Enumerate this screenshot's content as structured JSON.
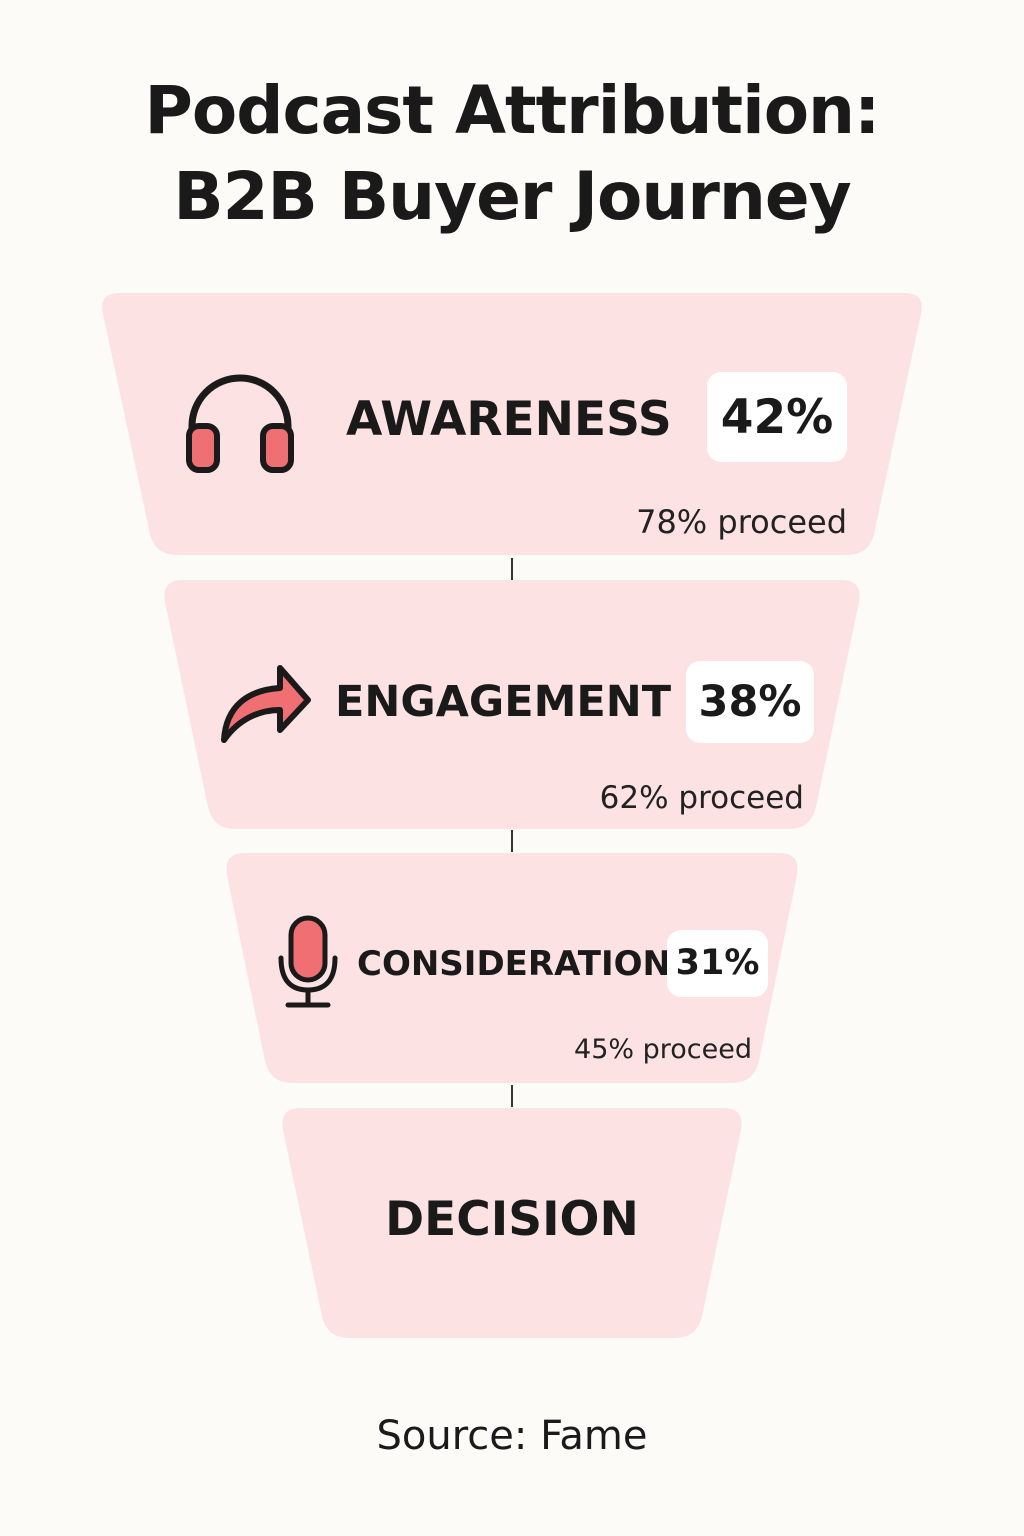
{
  "title": {
    "line1": "Podcast Attribution:",
    "line2": "B2B Buyer Journey"
  },
  "colors": {
    "background": "#fcfbf7",
    "stage_fill": "#fde2e4",
    "accent": "#ef6f73",
    "text": "#1a1a1a"
  },
  "stages": [
    {
      "label": "AWARENESS",
      "percent": "42%",
      "proceed": "78% proceed",
      "icon": "headphones-icon"
    },
    {
      "label": "ENGAGEMENT",
      "percent": "38%",
      "proceed": "62% proceed",
      "icon": "share-arrow-icon"
    },
    {
      "label": "CONSIDERATION",
      "percent": "31%",
      "proceed": "45% proceed",
      "icon": "microphone-icon"
    },
    {
      "label": "DECISION"
    }
  ],
  "source": "Source: Fame"
}
